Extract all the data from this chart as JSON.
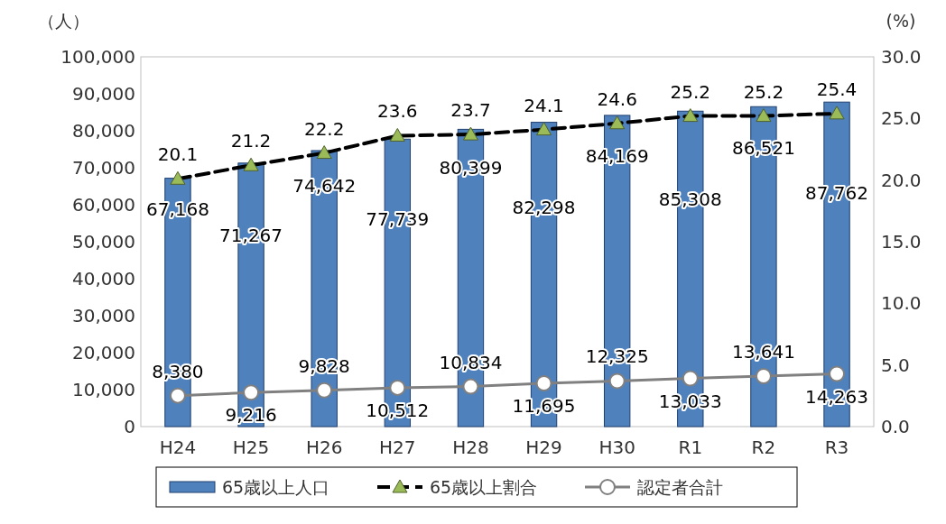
{
  "chart_data": {
    "type": "bar",
    "categories": [
      "H24",
      "H25",
      "H26",
      "H27",
      "H28",
      "H29",
      "H30",
      "R1",
      "R2",
      "R3"
    ],
    "series": [
      {
        "name": "65歳以上人口",
        "color": "#4f81bd",
        "values": [
          67168,
          71267,
          74642,
          77739,
          80399,
          82298,
          84169,
          85308,
          86521,
          87762
        ],
        "value_labels": [
          "67,168",
          "71,267",
          "74,642",
          "77,739",
          "80,399",
          "82,298",
          "84,169",
          "85,308",
          "86,521",
          "87,762"
        ]
      },
      {
        "name": "65歳以上割合",
        "type": "line",
        "axis": "y2",
        "color": "#000000",
        "line_style": "dashed",
        "marker": "triangle",
        "values": [
          20.1,
          21.2,
          22.2,
          23.6,
          23.7,
          24.1,
          24.6,
          25.2,
          25.2,
          25.4
        ]
      },
      {
        "name": "認定者合計",
        "type": "line",
        "color": "#808080",
        "line_style": "solid",
        "marker": "circle",
        "values": [
          8380,
          9216,
          9828,
          10512,
          10834,
          11695,
          12325,
          13033,
          13641,
          14263
        ],
        "value_labels": [
          "8,380",
          "9,216",
          "9,828",
          "10,512",
          "10,834",
          "11,695",
          "12,325",
          "13,033",
          "13,641",
          "14,263"
        ]
      }
    ],
    "ylabel": "（人）",
    "y2label": "(%)",
    "ylim": [
      0,
      100000
    ],
    "yticks": [
      0,
      {
        "value": 10000,
        "label": "10,000"
      },
      {
        "value": 20000,
        "label": "20,000"
      },
      {
        "value": 30000,
        "label": "30,000"
      },
      {
        "value": 40000,
        "label": "40,000"
      },
      {
        "value": 50000,
        "label": "50,000"
      },
      {
        "value": 60000,
        "label": "60,000"
      },
      {
        "value": 70000,
        "label": "70,000"
      },
      {
        "value": 80000,
        "label": "80,000"
      },
      {
        "value": 90000,
        "label": "90,000"
      },
      {
        "value": 100000,
        "label": "100,000"
      }
    ],
    "y2lim": [
      0,
      30
    ],
    "y2ticks": [
      {
        "value": 0,
        "label": "0.0"
      },
      {
        "value": 5,
        "label": "5.0"
      },
      {
        "value": 10,
        "label": "10.0"
      },
      {
        "value": 15,
        "label": "15.0"
      },
      {
        "value": 20,
        "label": "20.0"
      },
      {
        "value": 25,
        "label": "25.0"
      },
      {
        "value": 30,
        "label": "30.0"
      }
    ],
    "data_labels": true,
    "legend": "bottom",
    "grid": false
  }
}
